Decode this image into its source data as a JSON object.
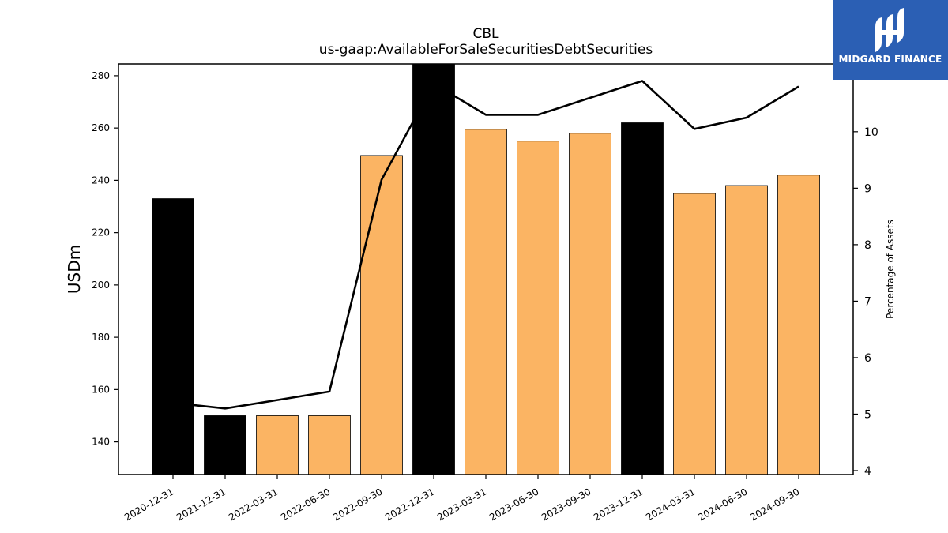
{
  "chart_data": {
    "type": "bar",
    "title": "CBL",
    "subtitle": "us-gaap:AvailableForSaleSecuritiesDebtSecurities",
    "ylabel": "USDm",
    "y2label": "Percentage of Assets",
    "categories": [
      "2020-12-31",
      "2021-12-31",
      "2022-03-31",
      "2022-06-30",
      "2022-09-30",
      "2022-12-31",
      "2023-03-31",
      "2023-06-30",
      "2023-09-30",
      "2023-12-31",
      "2024-03-31",
      "2024-06-30",
      "2024-09-30"
    ],
    "series": [
      {
        "type": "bar",
        "values": [
          233,
          150,
          150,
          150,
          249.5,
          285,
          259.5,
          255,
          258,
          262,
          235,
          238,
          242
        ],
        "fiscal_year_end": [
          true,
          true,
          false,
          false,
          false,
          true,
          false,
          false,
          false,
          true,
          false,
          false,
          false
        ],
        "colors": {
          "annual": "#000000",
          "quarterly": "#fbb463"
        }
      },
      {
        "type": "line",
        "axis": "right",
        "values": [
          5.2,
          5.1,
          5.25,
          5.4,
          9.15,
          10.85,
          10.3,
          10.3,
          10.6,
          10.9,
          10.05,
          10.25,
          10.8
        ],
        "color": "#000000"
      }
    ],
    "ylim": [
      127.5,
      284.5
    ],
    "yticks": [
      140,
      160,
      180,
      200,
      220,
      240,
      260,
      280
    ],
    "y2lim": [
      3.93,
      11.2
    ],
    "y2ticks": [
      4,
      5,
      6,
      7,
      8,
      9,
      10
    ],
    "grid": false
  },
  "logo": {
    "text": "MIDGARD FINANCE"
  }
}
